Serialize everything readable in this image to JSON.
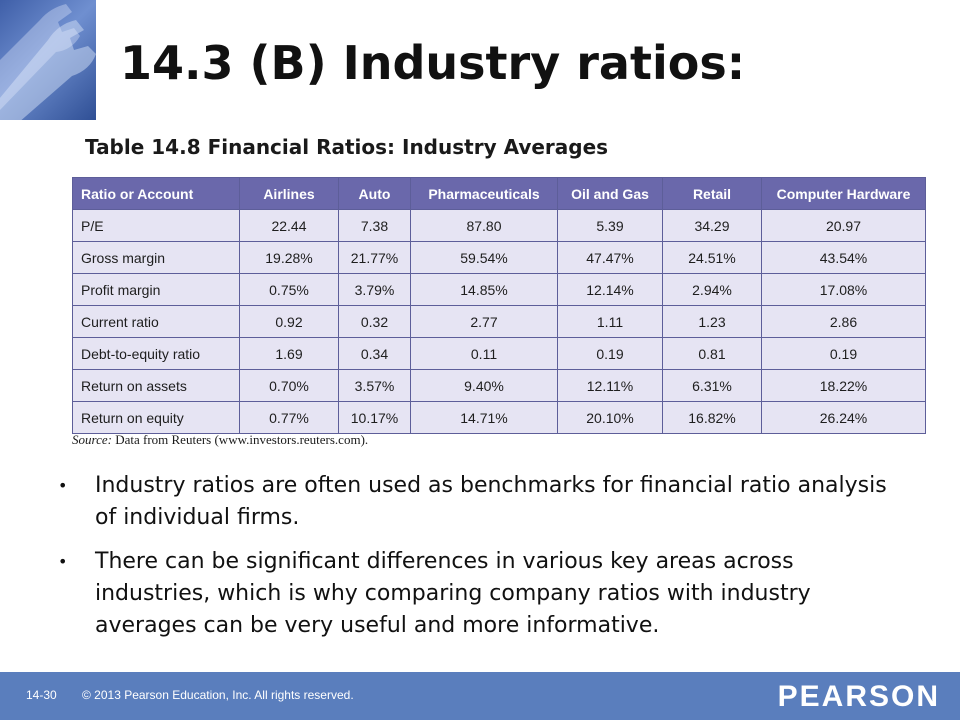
{
  "slide": {
    "title": "14.3 (B)  Industry ratios:",
    "table_caption": "Table 14.8 Financial Ratios: Industry Averages",
    "source_label": "Source:",
    "source_text": "Data from Reuters (www.investors.reuters.com).",
    "bullets": [
      "Industry ratios are often used as benchmarks for financial ratio analysis of individual firms.",
      "There can be significant differences in various key areas across industries, which is why comparing company ratios with industry averages can be very useful and more informative."
    ]
  },
  "table": {
    "headers": [
      "Ratio or Account",
      "Airlines",
      "Auto",
      "Pharmaceuticals",
      "Oil and Gas",
      "Retail",
      "Computer Hardware"
    ],
    "rows": [
      [
        "P/E",
        "22.44",
        "7.38",
        "87.80",
        "5.39",
        "34.29",
        "20.97"
      ],
      [
        "Gross margin",
        "19.28%",
        "21.77%",
        "59.54%",
        "47.47%",
        "24.51%",
        "43.54%"
      ],
      [
        "Profit margin",
        "0.75%",
        "3.79%",
        "14.85%",
        "12.14%",
        "2.94%",
        "17.08%"
      ],
      [
        "Current ratio",
        "0.92",
        "0.32",
        "2.77",
        "1.11",
        "1.23",
        "2.86"
      ],
      [
        "Debt-to-equity ratio",
        "1.69",
        "0.34",
        "0.11",
        "0.19",
        "0.81",
        "0.19"
      ],
      [
        "Return on assets",
        "0.70%",
        "3.57%",
        "9.40%",
        "12.11%",
        "6.31%",
        "18.22%"
      ],
      [
        "Return on equity",
        "0.77%",
        "10.17%",
        "14.71%",
        "20.10%",
        "16.82%",
        "26.24%"
      ]
    ]
  },
  "footer": {
    "slide_number": "14-30",
    "copyright": "© 2013 Pearson Education, Inc. All rights reserved.",
    "brand": "PEARSON"
  },
  "colors": {
    "header_fill": "#6a68ab",
    "cell_fill": "#e6e4f3",
    "footer_bar": "#5a7ebd"
  }
}
